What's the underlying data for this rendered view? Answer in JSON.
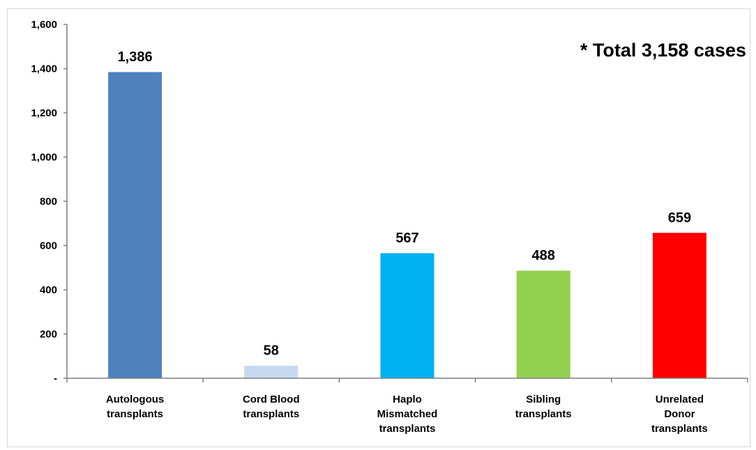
{
  "chart_data": {
    "type": "bar",
    "categories": [
      [
        "Autologous",
        "transplants"
      ],
      [
        "Cord Blood",
        "transplants"
      ],
      [
        "Haplo",
        "Mismatched",
        "transplants"
      ],
      [
        "Sibling",
        "transplants"
      ],
      [
        "Unrelated",
        "Donor",
        "transplants"
      ]
    ],
    "values": [
      1386,
      58,
      567,
      488,
      659
    ],
    "data_labels": [
      "1,386",
      "58",
      "567",
      "488",
      "659"
    ],
    "colors": [
      "#4f81bd",
      "#c6d9f1",
      "#00b0f0",
      "#92d050",
      "#ff0000"
    ],
    "title": "",
    "xlabel": "",
    "ylabel": "",
    "ylim": [
      0,
      1600
    ],
    "yticks": [
      0,
      200,
      400,
      600,
      800,
      1000,
      1200,
      1400,
      1600
    ],
    "ytick_labels": [
      "-",
      "200",
      "400",
      "600",
      "800",
      "1,000",
      "1,200",
      "1,400",
      "1,600"
    ],
    "grid": false,
    "legend": "none",
    "annotation": "* Total 3,158 cases"
  }
}
